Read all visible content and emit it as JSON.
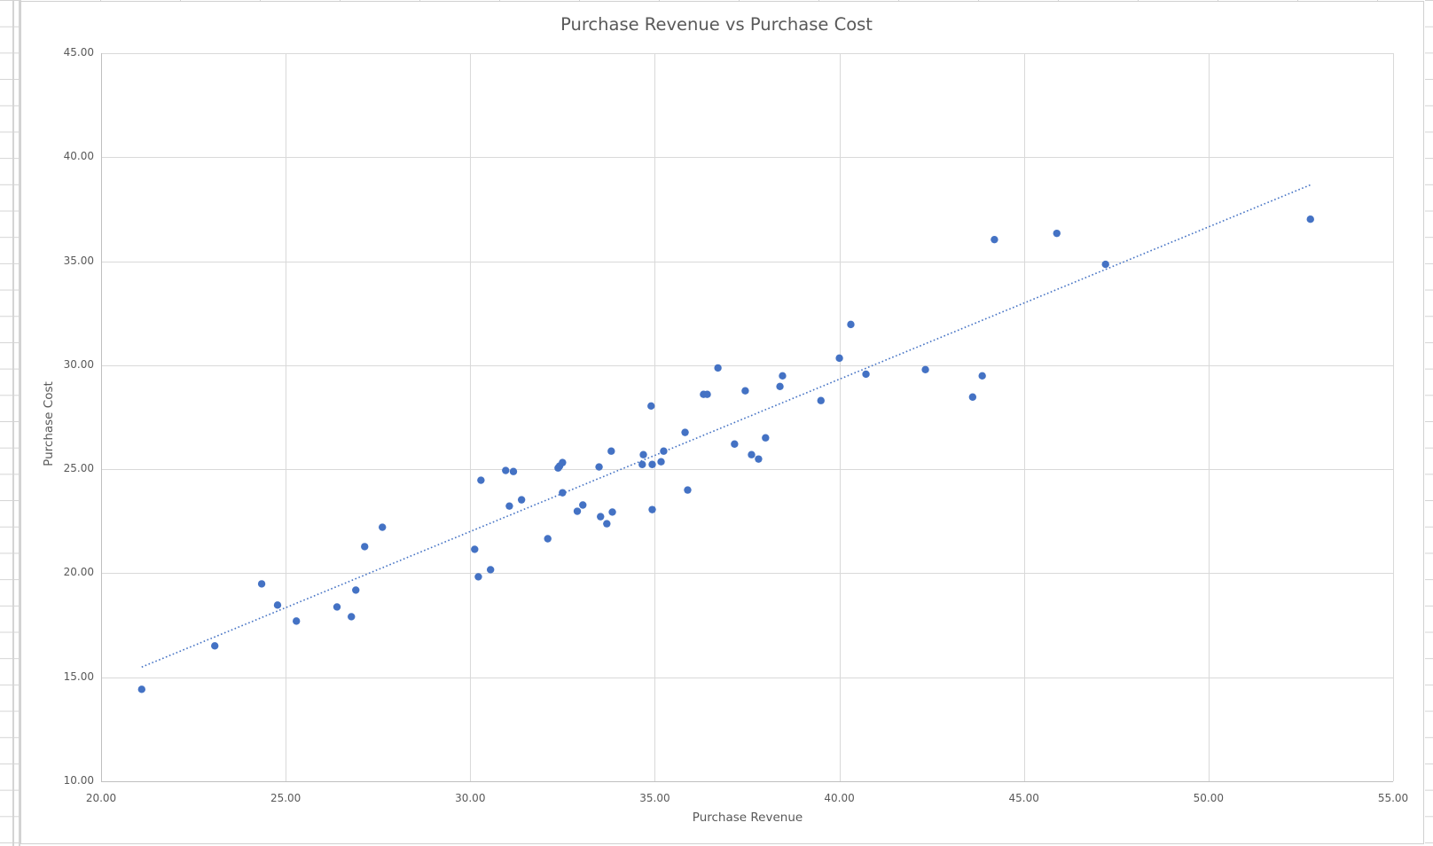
{
  "chart_data": {
    "type": "scatter",
    "title": "Purchase Revenue vs Purchase Cost",
    "xlabel": "Purchase Revenue",
    "ylabel": "Purchase Cost",
    "xlim": [
      20,
      55
    ],
    "ylim": [
      10,
      45
    ],
    "x_ticks": [
      "20.00",
      "25.00",
      "30.00",
      "35.00",
      "40.00",
      "45.00",
      "50.00",
      "55.00"
    ],
    "y_ticks": [
      "10.00",
      "15.00",
      "20.00",
      "25.00",
      "30.00",
      "35.00",
      "40.00",
      "45.00"
    ],
    "grid": true,
    "legend": "none",
    "marker_color": "#4472c4",
    "trendline": {
      "type": "linear",
      "style": "dotted",
      "color": "#4472c4",
      "start": [
        21.1,
        15.49
      ],
      "end": [
        52.76,
        38.67
      ]
    },
    "series": [
      {
        "name": "Purchase Cost",
        "points": [
          [
            21.1,
            14.42
          ],
          [
            23.08,
            16.51
          ],
          [
            24.35,
            19.49
          ],
          [
            24.78,
            18.47
          ],
          [
            25.29,
            17.7
          ],
          [
            26.39,
            18.38
          ],
          [
            26.78,
            17.91
          ],
          [
            26.9,
            19.19
          ],
          [
            27.14,
            21.28
          ],
          [
            27.62,
            22.21
          ],
          [
            30.12,
            21.15
          ],
          [
            30.22,
            19.83
          ],
          [
            30.29,
            24.47
          ],
          [
            30.55,
            20.17
          ],
          [
            30.96,
            24.94
          ],
          [
            31.17,
            24.89
          ],
          [
            31.06,
            23.23
          ],
          [
            31.39,
            23.53
          ],
          [
            32.1,
            21.66
          ],
          [
            32.38,
            25.06
          ],
          [
            32.42,
            25.15
          ],
          [
            32.5,
            25.32
          ],
          [
            32.5,
            23.87
          ],
          [
            32.9,
            22.98
          ],
          [
            33.05,
            23.28
          ],
          [
            33.49,
            25.11
          ],
          [
            33.53,
            22.72
          ],
          [
            33.7,
            22.38
          ],
          [
            33.82,
            25.87
          ],
          [
            33.85,
            22.94
          ],
          [
            34.66,
            25.23
          ],
          [
            34.69,
            25.7
          ],
          [
            34.9,
            28.04
          ],
          [
            34.93,
            25.23
          ],
          [
            34.93,
            23.06
          ],
          [
            35.17,
            25.36
          ],
          [
            35.24,
            25.87
          ],
          [
            35.82,
            26.77
          ],
          [
            35.89,
            24.0
          ],
          [
            36.32,
            28.6
          ],
          [
            36.42,
            28.6
          ],
          [
            36.71,
            29.87
          ],
          [
            37.16,
            26.21
          ],
          [
            37.45,
            28.77
          ],
          [
            37.62,
            25.7
          ],
          [
            37.81,
            25.49
          ],
          [
            38.0,
            26.51
          ],
          [
            38.39,
            28.98
          ],
          [
            38.46,
            29.49
          ],
          [
            39.5,
            28.3
          ],
          [
            40.0,
            30.34
          ],
          [
            40.31,
            31.96
          ],
          [
            40.72,
            29.57
          ],
          [
            42.33,
            29.79
          ],
          [
            43.61,
            28.47
          ],
          [
            43.87,
            29.49
          ],
          [
            44.2,
            36.04
          ],
          [
            45.89,
            36.34
          ],
          [
            47.21,
            34.85
          ],
          [
            52.76,
            37.02
          ]
        ]
      }
    ]
  }
}
